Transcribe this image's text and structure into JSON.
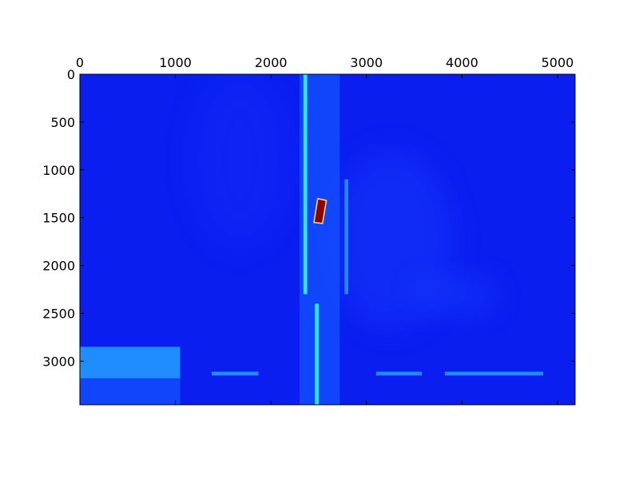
{
  "chart_data": {
    "type": "heatmap",
    "title": "",
    "xlabel": "",
    "ylabel": "",
    "xlim": [
      0,
      5184
    ],
    "ylim": [
      3456,
      0
    ],
    "x_ticks": [
      0,
      1000,
      2000,
      3000,
      4000,
      5000
    ],
    "x_tick_labels": [
      "0",
      "1000",
      "2000",
      "3000",
      "4000",
      "5000"
    ],
    "y_ticks": [
      0,
      500,
      1000,
      1500,
      2000,
      2500,
      3000
    ],
    "y_tick_labels": [
      "0",
      "500",
      "1000",
      "1500",
      "2000",
      "2500",
      "3000"
    ],
    "x_axis_position": "top",
    "colormap": "jet",
    "grid": false,
    "colors": {
      "background": "#0a1ef0",
      "medium": "#1453ff",
      "bright": "#1f8cff",
      "cyan": "#32e0ff",
      "hot": "#8b0000",
      "hot_outline": "#ffe066"
    },
    "features": [
      {
        "name": "dark-vertical-pillar",
        "x": [
          2300,
          2720
        ],
        "y": [
          0,
          3456
        ],
        "level": "medium"
      },
      {
        "name": "bright-left-edge-line",
        "x": [
          2340,
          2380
        ],
        "y": [
          0,
          2300
        ],
        "level": "cyan"
      },
      {
        "name": "bright-right-edge-line",
        "x": [
          2770,
          2810
        ],
        "y": [
          1100,
          2300
        ],
        "level": "bright"
      },
      {
        "name": "lower-vertical-line",
        "x": [
          2460,
          2500
        ],
        "y": [
          2400,
          3456
        ],
        "level": "cyan"
      },
      {
        "name": "bottom-left-block",
        "x": [
          0,
          1050
        ],
        "y": [
          2850,
          3180
        ],
        "level": "bright"
      },
      {
        "name": "bottom-left-lower-block",
        "x": [
          0,
          1050
        ],
        "y": [
          3180,
          3456
        ],
        "level": "medium"
      },
      {
        "name": "bottom-strip-1",
        "x": [
          1380,
          1870
        ],
        "y": [
          3110,
          3150
        ],
        "level": "bright"
      },
      {
        "name": "bottom-strip-2",
        "x": [
          3100,
          3580
        ],
        "y": [
          3110,
          3150
        ],
        "level": "bright"
      },
      {
        "name": "bottom-strip-3",
        "x": [
          3820,
          4850
        ],
        "y": [
          3110,
          3150
        ],
        "level": "bright"
      },
      {
        "name": "hot-spot",
        "polygon": [
          [
            2490,
            1300
          ],
          [
            2580,
            1320
          ],
          [
            2540,
            1560
          ],
          [
            2450,
            1550
          ]
        ],
        "level": "hot"
      }
    ]
  }
}
